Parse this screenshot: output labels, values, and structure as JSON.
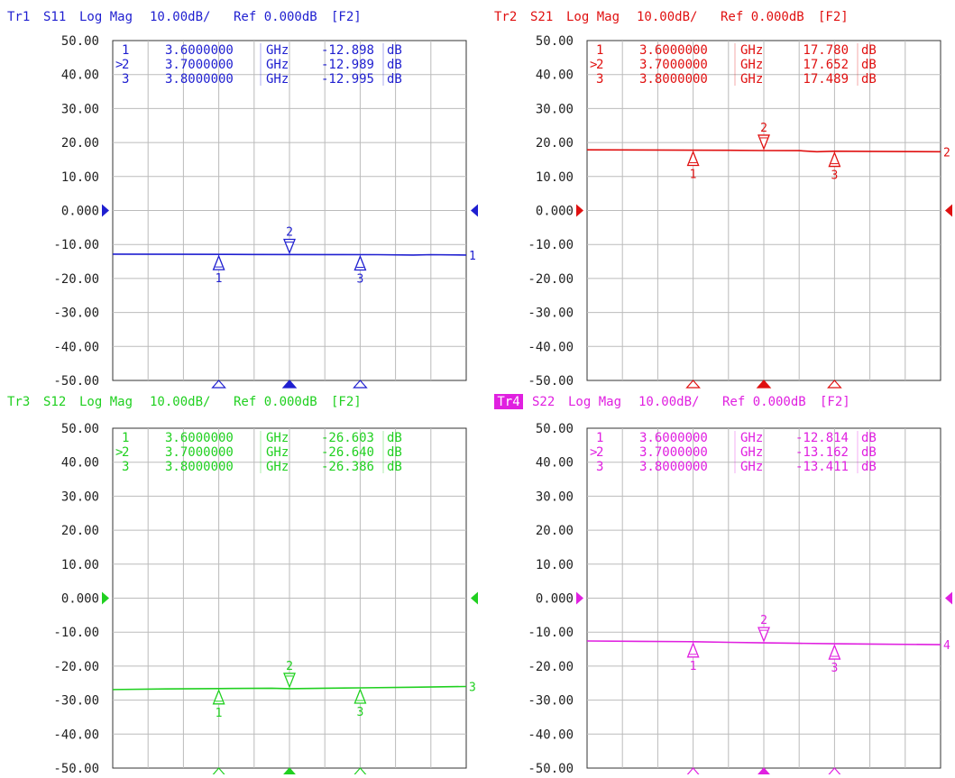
{
  "chart_data": [
    {
      "type": "line",
      "trace_label": "Tr1",
      "measurement": "S11",
      "format": "Log Mag",
      "scale": "10.00dB/",
      "reference": "Ref 0.000dB",
      "tag": "[F2]",
      "color": "#1f1fd0",
      "active": false,
      "ylim": [
        -50,
        50
      ],
      "yticks": [
        "50.00",
        "40.00",
        "30.00",
        "20.00",
        "10.00",
        "0.000",
        "-10.00",
        "-20.00",
        "-30.00",
        "-40.00",
        "-50.00"
      ],
      "x_markers_fraction": [
        0.3,
        0.5,
        0.7
      ],
      "marker_rows": [
        {
          "index": "1",
          "freq": "3.6000000",
          "unit": "GHz",
          "value": "-12.898",
          "vunit": "dB",
          "active": false
        },
        {
          "index": "2",
          "freq": "3.7000000",
          "unit": "GHz",
          "value": "-12.989",
          "vunit": "dB",
          "active": true
        },
        {
          "index": "3",
          "freq": "3.8000000",
          "unit": "GHz",
          "value": "-12.995",
          "vunit": "dB",
          "active": false
        }
      ],
      "markers": [
        {
          "label": "1",
          "y": -12.898
        },
        {
          "label": "2",
          "y": -12.989
        },
        {
          "label": "3",
          "y": -12.995
        }
      ],
      "trace": {
        "x": [
          0,
          0.2,
          0.4,
          0.6,
          0.75,
          0.85,
          0.9,
          1.0
        ],
        "y": [
          -12.85,
          -12.88,
          -12.95,
          -12.98,
          -13.0,
          -13.1,
          -13.0,
          -13.1
        ]
      },
      "end_label": "1"
    },
    {
      "type": "line",
      "trace_label": "Tr2",
      "measurement": "S21",
      "format": "Log Mag",
      "scale": "10.00dB/",
      "reference": "Ref 0.000dB",
      "tag": "[F2]",
      "color": "#e01010",
      "active": false,
      "ylim": [
        -50,
        50
      ],
      "yticks": [
        "50.00",
        "40.00",
        "30.00",
        "20.00",
        "10.00",
        "0.000",
        "-10.00",
        "-20.00",
        "-30.00",
        "-40.00",
        "-50.00"
      ],
      "x_markers_fraction": [
        0.3,
        0.5,
        0.7
      ],
      "marker_rows": [
        {
          "index": "1",
          "freq": "3.6000000",
          "unit": "GHz",
          "value": "17.780",
          "vunit": "dB",
          "active": false
        },
        {
          "index": "2",
          "freq": "3.7000000",
          "unit": "GHz",
          "value": "17.652",
          "vunit": "dB",
          "active": true
        },
        {
          "index": "3",
          "freq": "3.8000000",
          "unit": "GHz",
          "value": "17.489",
          "vunit": "dB",
          "active": false
        }
      ],
      "markers": [
        {
          "label": "1",
          "y": 17.78
        },
        {
          "label": "2",
          "y": 17.652
        },
        {
          "label": "3",
          "y": 17.489
        }
      ],
      "trace": {
        "x": [
          0,
          0.2,
          0.4,
          0.5,
          0.6,
          0.65,
          0.7,
          0.8,
          1.0
        ],
        "y": [
          17.85,
          17.8,
          17.72,
          17.65,
          17.6,
          17.3,
          17.45,
          17.4,
          17.3
        ]
      },
      "end_label": "2"
    },
    {
      "type": "line",
      "trace_label": "Tr3",
      "measurement": "S12",
      "format": "Log Mag",
      "scale": "10.00dB/",
      "reference": "Ref 0.000dB",
      "tag": "[F2]",
      "color": "#20d020",
      "active": false,
      "ylim": [
        -50,
        50
      ],
      "yticks": [
        "50.00",
        "40.00",
        "30.00",
        "20.00",
        "10.00",
        "0.000",
        "-10.00",
        "-20.00",
        "-30.00",
        "-40.00",
        "-50.00"
      ],
      "x_markers_fraction": [
        0.3,
        0.5,
        0.7
      ],
      "marker_rows": [
        {
          "index": "1",
          "freq": "3.6000000",
          "unit": "GHz",
          "value": "-26.603",
          "vunit": "dB",
          "active": false
        },
        {
          "index": "2",
          "freq": "3.7000000",
          "unit": "GHz",
          "value": "-26.640",
          "vunit": "dB",
          "active": true
        },
        {
          "index": "3",
          "freq": "3.8000000",
          "unit": "GHz",
          "value": "-26.386",
          "vunit": "dB",
          "active": false
        }
      ],
      "markers": [
        {
          "label": "1",
          "y": -26.603
        },
        {
          "label": "2",
          "y": -26.64
        },
        {
          "label": "3",
          "y": -26.386
        }
      ],
      "trace": {
        "x": [
          0,
          0.15,
          0.3,
          0.45,
          0.5,
          0.6,
          0.7,
          0.85,
          1.0
        ],
        "y": [
          -26.9,
          -26.7,
          -26.6,
          -26.5,
          -26.64,
          -26.5,
          -26.39,
          -26.2,
          -26.0
        ]
      },
      "end_label": "3"
    },
    {
      "type": "line",
      "trace_label": "Tr4",
      "measurement": "S22",
      "format": "Log Mag",
      "scale": "10.00dB/",
      "reference": "Ref 0.000dB",
      "tag": "[F2]",
      "color": "#e020e0",
      "active": true,
      "ylim": [
        -50,
        50
      ],
      "yticks": [
        "50.00",
        "40.00",
        "30.00",
        "20.00",
        "10.00",
        "0.000",
        "-10.00",
        "-20.00",
        "-30.00",
        "-40.00",
        "-50.00"
      ],
      "x_markers_fraction": [
        0.3,
        0.5,
        0.7
      ],
      "marker_rows": [
        {
          "index": "1",
          "freq": "3.6000000",
          "unit": "GHz",
          "value": "-12.814",
          "vunit": "dB",
          "active": false
        },
        {
          "index": "2",
          "freq": "3.7000000",
          "unit": "GHz",
          "value": "-13.162",
          "vunit": "dB",
          "active": true
        },
        {
          "index": "3",
          "freq": "3.8000000",
          "unit": "GHz",
          "value": "-13.411",
          "vunit": "dB",
          "active": false
        }
      ],
      "markers": [
        {
          "label": "1",
          "y": -12.814
        },
        {
          "label": "2",
          "y": -13.162
        },
        {
          "label": "3",
          "y": -13.411
        }
      ],
      "trace": {
        "x": [
          0,
          0.15,
          0.3,
          0.4,
          0.5,
          0.6,
          0.7,
          0.8,
          1.0
        ],
        "y": [
          -12.6,
          -12.7,
          -12.81,
          -13.0,
          -13.16,
          -13.3,
          -13.41,
          -13.5,
          -13.7
        ]
      },
      "end_label": "4"
    }
  ]
}
